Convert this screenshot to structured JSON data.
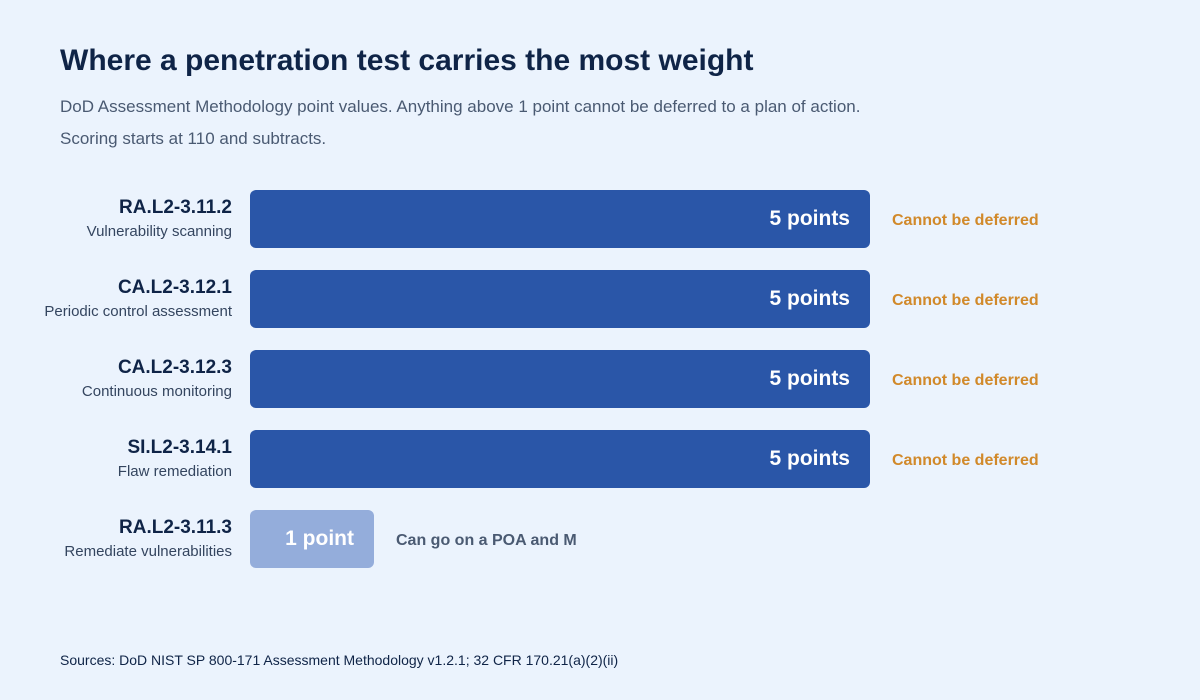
{
  "title": "Where a penetration test carries the most weight",
  "subtitle_line1": "DoD Assessment Methodology point values. Anything above 1 point cannot be deferred to a plan of action.",
  "subtitle_line2": "Scoring starts at 110 and subtracts.",
  "sources": "Sources: DoD NIST SP 800-171 Assessment Methodology v1.2.1; 32 CFR 170.21(a)(2)(ii)",
  "colors": {
    "bar_high": "#2a56a8",
    "bar_low": "#94addb",
    "status_deferred": "#d1892a",
    "status_poam": "#4a5a72"
  },
  "chart_data": {
    "type": "bar",
    "orientation": "horizontal",
    "xlim": [
      0,
      5
    ],
    "categories": [
      {
        "id": "RA.L2-3.11.2",
        "name": "Vulnerability scanning"
      },
      {
        "id": "CA.L2-3.12.1",
        "name": "Periodic control assessment"
      },
      {
        "id": "CA.L2-3.12.3",
        "name": "Continuous monitoring"
      },
      {
        "id": "SI.L2-3.14.1",
        "name": "Flaw remediation"
      },
      {
        "id": "RA.L2-3.11.3",
        "name": "Remediate vulnerabilities"
      }
    ],
    "values": [
      5,
      5,
      5,
      5,
      1
    ],
    "value_labels": [
      "5 points",
      "5 points",
      "5 points",
      "5 points",
      "1 point"
    ],
    "status_labels": [
      "Cannot be deferred",
      "Cannot be deferred",
      "Cannot be deferred",
      "Cannot be deferred",
      "Can go on a POA and M"
    ]
  }
}
